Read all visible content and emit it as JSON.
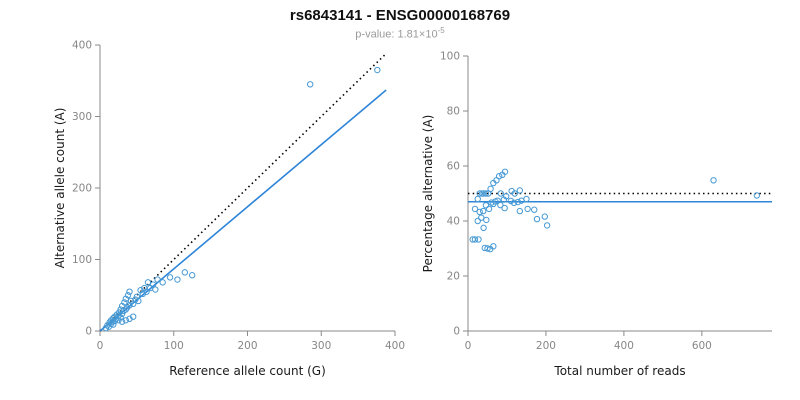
{
  "header": {
    "title": "rs6843141 - ENSG00000168769",
    "p_label": "p-value: ",
    "p_base": "1.81×10",
    "p_exponent": "-5"
  },
  "chart_data": [
    {
      "type": "scatter",
      "name": "allele-counts",
      "xlabel": "Reference allele count (G)",
      "ylabel": "Alternative allele count (A)",
      "xlim": [
        0,
        400
      ],
      "ylim": [
        0,
        400
      ],
      "xticks": [
        0,
        100,
        200,
        300,
        400
      ],
      "yticks": [
        0,
        100,
        200,
        300,
        400
      ],
      "grid": false,
      "legend": "none",
      "marker": {
        "shape": "open-circle",
        "color": "#4699d4"
      },
      "lines": [
        {
          "name": "identity",
          "style": "dotted",
          "color": "#000000",
          "x1": 0,
          "y1": 0,
          "x2": 388,
          "y2": 388
        },
        {
          "name": "regression",
          "style": "solid",
          "color": "#2d84d8",
          "x1": 0,
          "y1": 0,
          "x2": 388,
          "y2": 337
        }
      ],
      "points": [
        [
          8,
          4
        ],
        [
          10,
          8
        ],
        [
          12,
          6
        ],
        [
          13,
          12
        ],
        [
          15,
          10
        ],
        [
          15,
          15
        ],
        [
          17,
          13
        ],
        [
          18,
          9
        ],
        [
          18,
          18
        ],
        [
          20,
          14
        ],
        [
          20,
          20
        ],
        [
          22,
          17
        ],
        [
          23,
          23
        ],
        [
          25,
          15
        ],
        [
          25,
          21
        ],
        [
          26,
          26
        ],
        [
          28,
          19
        ],
        [
          28,
          30
        ],
        [
          30,
          13
        ],
        [
          30,
          24
        ],
        [
          30,
          35
        ],
        [
          32,
          28
        ],
        [
          33,
          40
        ],
        [
          35,
          15
        ],
        [
          35,
          30
        ],
        [
          35,
          45
        ],
        [
          37,
          33
        ],
        [
          38,
          50
        ],
        [
          40,
          17
        ],
        [
          40,
          36
        ],
        [
          40,
          55
        ],
        [
          42,
          42
        ],
        [
          45,
          20
        ],
        [
          45,
          38
        ],
        [
          48,
          44
        ],
        [
          50,
          48
        ],
        [
          52,
          42
        ],
        [
          55,
          57
        ],
        [
          58,
          52
        ],
        [
          60,
          60
        ],
        [
          63,
          55
        ],
        [
          65,
          68
        ],
        [
          68,
          60
        ],
        [
          72,
          65
        ],
        [
          75,
          58
        ],
        [
          78,
          72
        ],
        [
          85,
          68
        ],
        [
          95,
          75
        ],
        [
          105,
          72
        ],
        [
          115,
          82
        ],
        [
          125,
          78
        ],
        [
          285,
          345
        ],
        [
          376,
          365
        ]
      ]
    },
    {
      "type": "scatter",
      "name": "percentage-vs-coverage",
      "xlabel": "Total number of reads",
      "ylabel": "Percentage alternative (A)",
      "xlim": [
        0,
        780
      ],
      "ylim": [
        0,
        100
      ],
      "xticks": [
        0,
        200,
        400,
        600
      ],
      "yticks": [
        0,
        20,
        40,
        60,
        80,
        100
      ],
      "grid": false,
      "legend": "none",
      "marker": {
        "shape": "open-circle",
        "color": "#4699d4"
      },
      "lines": [
        {
          "name": "expected-50pct",
          "style": "dotted",
          "color": "#000000",
          "x1": 0,
          "y1": 50,
          "x2": 780,
          "y2": 50
        },
        {
          "name": "mean-percentage",
          "style": "solid",
          "color": "#2d84d8",
          "x1": 0,
          "y1": 47,
          "x2": 780,
          "y2": 47
        }
      ],
      "points": [
        [
          12,
          33.3
        ],
        [
          18,
          44.4
        ],
        [
          18,
          33.3
        ],
        [
          25,
          48
        ],
        [
          25,
          40
        ],
        [
          30,
          50
        ],
        [
          30,
          43.3
        ],
        [
          27,
          33.3
        ],
        [
          36,
          50
        ],
        [
          34,
          41.2
        ],
        [
          40,
          50
        ],
        [
          39,
          43.6
        ],
        [
          46,
          50
        ],
        [
          40,
          37.5
        ],
        [
          46,
          45.7
        ],
        [
          52,
          50
        ],
        [
          47,
          40.4
        ],
        [
          58,
          51.7
        ],
        [
          43,
          30.2
        ],
        [
          54,
          44.4
        ],
        [
          65,
          53.8
        ],
        [
          60,
          46.7
        ],
        [
          73,
          54.8
        ],
        [
          50,
          30
        ],
        [
          65,
          46.2
        ],
        [
          80,
          56.3
        ],
        [
          70,
          47.1
        ],
        [
          88,
          56.8
        ],
        [
          57,
          29.8
        ],
        [
          76,
          47.4
        ],
        [
          95,
          57.9
        ],
        [
          84,
          50
        ],
        [
          65,
          30.8
        ],
        [
          83,
          45.8
        ],
        [
          92,
          47.8
        ],
        [
          98,
          49
        ],
        [
          94,
          44.7
        ],
        [
          112,
          50.9
        ],
        [
          110,
          47.3
        ],
        [
          120,
          50
        ],
        [
          118,
          46.6
        ],
        [
          133,
          51.1
        ],
        [
          128,
          46.9
        ],
        [
          137,
          47.4
        ],
        [
          133,
          43.6
        ],
        [
          150,
          48
        ],
        [
          153,
          44.4
        ],
        [
          170,
          44.1
        ],
        [
          177,
          40.7
        ],
        [
          197,
          41.6
        ],
        [
          203,
          38.4
        ],
        [
          630,
          54.8
        ],
        [
          741,
          49.3
        ]
      ]
    }
  ]
}
